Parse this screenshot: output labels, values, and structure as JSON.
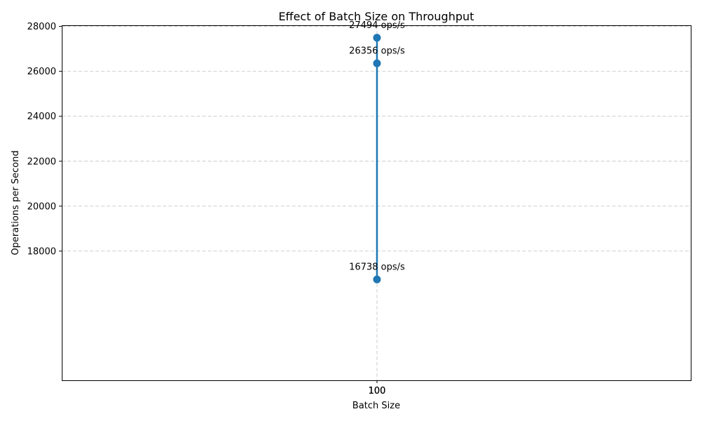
{
  "chart_data": {
    "type": "line",
    "title": "Effect of Batch Size on Throughput",
    "xlabel": "Batch Size",
    "ylabel": "Operations per Second",
    "x_ticks": [
      "100",
      "100",
      "100"
    ],
    "y_ticks": [
      18000,
      20000,
      22000,
      24000,
      26000,
      28000
    ],
    "ylim": [
      12250,
      28050
    ],
    "grid": true,
    "series": [
      {
        "color": "#1f77b4",
        "points": [
          {
            "x": 100,
            "y": 16738,
            "label": "16738 ops/s"
          },
          {
            "x": 100,
            "y": 26356,
            "label": "26356 ops/s"
          },
          {
            "x": 100,
            "y": 27494,
            "label": "27494 ops/s"
          }
        ]
      }
    ]
  }
}
